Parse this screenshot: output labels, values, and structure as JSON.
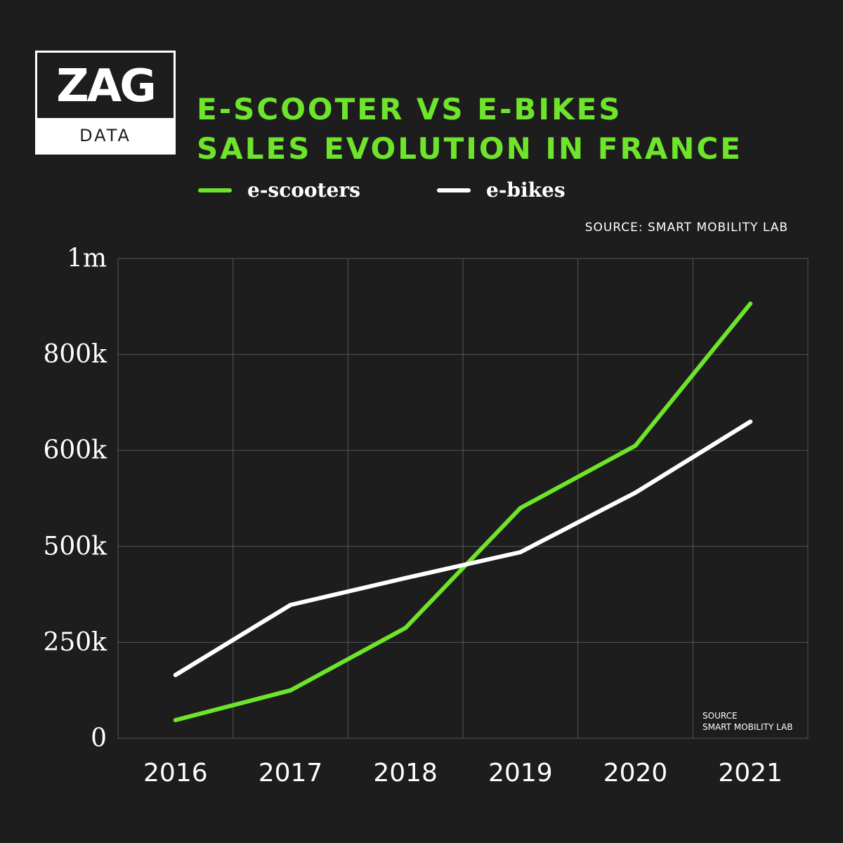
{
  "logo": {
    "wordmark": "ZAG",
    "subtitle": "DATA"
  },
  "title": {
    "line1": "E-SCOOTER VS E-BIKES",
    "line2": "SALES EVOLUTION IN FRANCE"
  },
  "legend": [
    {
      "label": "e-scooters",
      "color": "#6ee52a"
    },
    {
      "label": "e-bikes",
      "color": "#ffffff"
    }
  ],
  "source_top": "SOURCE: SMART MOBILITY LAB",
  "source_inner": {
    "line1": "SOURCE",
    "line2": "SMART MOBILITY LAB"
  },
  "colors": {
    "background": "#1d1d1d",
    "accent": "#6ee52a",
    "grid": "#555555",
    "text": "#ffffff"
  },
  "chart_data": {
    "type": "line",
    "categories": [
      "2016",
      "2017",
      "2018",
      "2019",
      "2020",
      "2021"
    ],
    "y_tick_labels": [
      "0",
      "250k",
      "500k",
      "600k",
      "800k",
      "1m"
    ],
    "y_tick_index": [
      0,
      1,
      2,
      3,
      4,
      5
    ],
    "grid": true,
    "legend_position": "top",
    "series": [
      {
        "name": "e-scooters",
        "color": "#6ee52a",
        "y_tick_index": [
          0.19,
          0.5,
          1.15,
          2.4,
          3.05,
          4.53
        ]
      },
      {
        "name": "e-bikes",
        "color": "#ffffff",
        "y_tick_index": [
          0.66,
          1.39,
          1.67,
          1.94,
          2.56,
          3.3
        ]
      }
    ]
  }
}
